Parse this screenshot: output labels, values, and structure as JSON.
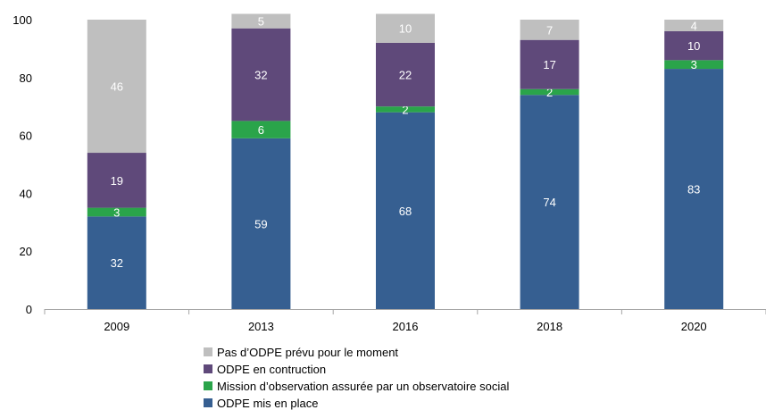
{
  "chart_data": {
    "type": "bar",
    "stacked": true,
    "categories": [
      "2009",
      "2013",
      "2016",
      "2018",
      "2020"
    ],
    "series": [
      {
        "name": "ODPE mis en place",
        "color": "#365f91",
        "values": [
          32,
          59,
          68,
          74,
          83
        ]
      },
      {
        "name": "Mission d’observation assurée par un observatoire social",
        "color": "#2aa44a",
        "values": [
          3,
          6,
          2,
          2,
          3
        ]
      },
      {
        "name": "ODPE en contruction",
        "color": "#5f497a",
        "values": [
          19,
          32,
          22,
          17,
          10
        ]
      },
      {
        "name": "Pas d’ODPE prévu pour le moment",
        "color": "#bfbfbf",
        "values": [
          46,
          5,
          10,
          7,
          4
        ]
      }
    ],
    "ylim": [
      0,
      100
    ],
    "yticks": [
      0,
      20,
      40,
      60,
      80,
      100
    ],
    "title": "",
    "xlabel": "",
    "ylabel": "",
    "grid": false,
    "legend": "bottom"
  }
}
